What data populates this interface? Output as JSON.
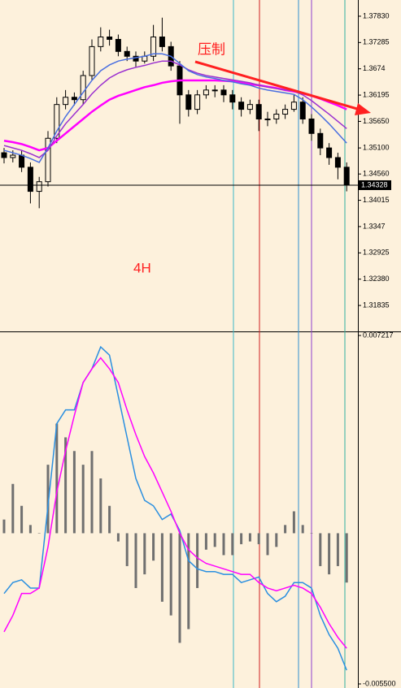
{
  "chart_data": [
    {
      "type": "candlestick",
      "annotations": [
        "压制",
        "4H"
      ],
      "open": [
        1.35,
        1.349,
        1.3495,
        1.347,
        1.342,
        1.344,
        1.353,
        1.36,
        1.3615,
        1.361,
        1.366,
        1.372,
        1.374,
        1.3735,
        1.371,
        1.37,
        1.369,
        1.37,
        1.374,
        1.372,
        1.368,
        1.362,
        1.359,
        1.362,
        1.363,
        1.363,
        1.362,
        1.3605,
        1.359,
        1.36,
        1.357,
        1.357,
        1.358,
        1.359,
        1.3605,
        1.357,
        1.354,
        1.351,
        1.349,
        1.347
      ],
      "high": [
        1.351,
        1.3505,
        1.3505,
        1.348,
        1.345,
        1.3545,
        1.3615,
        1.363,
        1.3625,
        1.367,
        1.3735,
        1.376,
        1.3755,
        1.3745,
        1.372,
        1.371,
        1.371,
        1.3765,
        1.378,
        1.373,
        1.369,
        1.363,
        1.363,
        1.364,
        1.364,
        1.364,
        1.363,
        1.3615,
        1.361,
        1.361,
        1.3585,
        1.359,
        1.36,
        1.362,
        1.3615,
        1.358,
        1.355,
        1.352,
        1.35,
        1.348
      ],
      "low": [
        1.3478,
        1.348,
        1.346,
        1.3395,
        1.3385,
        1.343,
        1.352,
        1.359,
        1.3598,
        1.36,
        1.365,
        1.371,
        1.3722,
        1.37,
        1.369,
        1.3678,
        1.3685,
        1.369,
        1.371,
        1.367,
        1.356,
        1.3575,
        1.358,
        1.3612,
        1.3615,
        1.3605,
        1.359,
        1.3575,
        1.358,
        1.3545,
        1.3555,
        1.356,
        1.357,
        1.3585,
        1.356,
        1.3525,
        1.3495,
        1.3475,
        1.3445,
        1.342
      ],
      "close": [
        1.349,
        1.3495,
        1.347,
        1.342,
        1.344,
        1.353,
        1.36,
        1.3615,
        1.361,
        1.366,
        1.372,
        1.374,
        1.3735,
        1.371,
        1.37,
        1.369,
        1.37,
        1.374,
        1.372,
        1.368,
        1.362,
        1.359,
        1.362,
        1.363,
        1.363,
        1.362,
        1.3605,
        1.359,
        1.36,
        1.357,
        1.357,
        1.358,
        1.359,
        1.3605,
        1.357,
        1.354,
        1.351,
        1.349,
        1.347,
        1.3433
      ],
      "series": [
        {
          "color": "#ff00ff",
          "values": [
            1.3525,
            1.3522,
            1.3518,
            1.3512,
            1.3505,
            1.351,
            1.3525,
            1.354,
            1.3555,
            1.357,
            1.3585,
            1.3598,
            1.361,
            1.3618,
            1.3624,
            1.363,
            1.3636,
            1.364,
            1.3645,
            1.3648,
            1.365,
            1.365,
            1.365,
            1.365,
            1.365,
            1.3649,
            1.3648,
            1.3645,
            1.3642,
            1.364,
            1.3637,
            1.3634,
            1.363,
            1.3627,
            1.3623,
            1.3618,
            1.3612,
            1.3605,
            1.3598,
            1.359
          ]
        },
        {
          "color": "#9b30d0",
          "values": [
            1.3515,
            1.351,
            1.3505,
            1.3498,
            1.349,
            1.3505,
            1.3535,
            1.356,
            1.358,
            1.36,
            1.3622,
            1.364,
            1.3655,
            1.3665,
            1.3672,
            1.3677,
            1.3681,
            1.3686,
            1.369,
            1.369,
            1.3682,
            1.3672,
            1.3665,
            1.366,
            1.3657,
            1.3654,
            1.3651,
            1.3648,
            1.3645,
            1.364,
            1.3636,
            1.3633,
            1.363,
            1.3628,
            1.362,
            1.3608,
            1.3594,
            1.358,
            1.3565,
            1.355
          ]
        },
        {
          "color": "#4a6fe0",
          "values": [
            1.3505,
            1.35,
            1.3495,
            1.3488,
            1.348,
            1.351,
            1.3545,
            1.3575,
            1.36,
            1.3625,
            1.365,
            1.367,
            1.3682,
            1.369,
            1.3694,
            1.3697,
            1.37,
            1.3705,
            1.3705,
            1.37,
            1.3685,
            1.367,
            1.3662,
            1.3657,
            1.3654,
            1.365,
            1.3647,
            1.3643,
            1.364,
            1.3634,
            1.363,
            1.3627,
            1.3624,
            1.3621,
            1.361,
            1.3595,
            1.3578,
            1.356,
            1.354,
            1.352
          ]
        }
      ],
      "last_price": 1.34328,
      "ylim": [
        1.31314,
        1.38166
      ],
      "yticks": [
        {
          "value": 1.3783,
          "label": "1.37830"
        },
        1.37285,
        1.3674,
        1.36195,
        {
          "value": 1.3565,
          "label": "1.35650"
        },
        {
          "value": 1.351,
          "label": "1.35100"
        },
        {
          "value": 1.3456,
          "label": "1.34560"
        },
        1.34015,
        1.3347,
        1.32925,
        {
          "value": 1.3238,
          "label": "1.32380"
        },
        1.31835
      ]
    },
    {
      "type": "macd",
      "values": [
        0.0005,
        0.0018,
        0.001,
        0.0003,
        0.0,
        0.0025,
        0.004,
        0.0035,
        0.003,
        0.0025,
        0.003,
        0.002,
        0.001,
        -0.0003,
        -0.0012,
        -0.002,
        -0.0015,
        -0.001,
        -0.0025,
        -0.003,
        -0.004,
        -0.0035,
        -0.002,
        -0.0006,
        -0.0005,
        -0.0008,
        -0.0008,
        -0.0004,
        -0.0003,
        -0.0004,
        -0.0008,
        -0.0005,
        0.0003,
        0.0008,
        0.0003,
        0.0,
        -0.0012,
        -0.0015,
        -0.0012,
        -0.0018
      ],
      "color": "#707070",
      "series": [
        {
          "color": "#2a8fe0",
          "values": [
            -0.0022,
            -0.0018,
            -0.0017,
            -0.002,
            -0.002,
            0.001,
            0.004,
            0.0045,
            0.0045,
            0.0055,
            0.006,
            0.0068,
            0.0065,
            0.005,
            0.0035,
            0.002,
            0.0012,
            0.001,
            0.0005,
            0.0007,
            0.0001,
            -0.001,
            -0.0013,
            -0.0014,
            -0.0014,
            -0.0015,
            -0.0015,
            -0.0018,
            -0.0017,
            -0.0016,
            -0.0022,
            -0.0025,
            -0.0023,
            -0.0018,
            -0.0018,
            -0.002,
            -0.003,
            -0.0037,
            -0.0042,
            -0.005
          ]
        },
        {
          "color": "#ff00ff",
          "values": [
            -0.0036,
            -0.003,
            -0.0022,
            -0.0022,
            -0.002,
            -0.0005,
            0.0015,
            0.003,
            0.0043,
            0.0055,
            0.006,
            0.0064,
            0.006,
            0.0055,
            0.0045,
            0.0036,
            0.0028,
            0.0022,
            0.0015,
            0.0008,
            0.0,
            -0.0006,
            -0.0009,
            -0.0011,
            -0.0012,
            -0.0013,
            -0.0014,
            -0.0015,
            -0.0015,
            -0.0018,
            -0.002,
            -0.0021,
            -0.002,
            -0.0019,
            -0.002,
            -0.0022,
            -0.0027,
            -0.0033,
            -0.0038,
            -0.0042
          ]
        }
      ],
      "ylim": [
        -0.005648,
        0.007336
      ],
      "yticks": [
        0.007217,
        {
          "value": -0.0055,
          "label": "-0.005500"
        }
      ]
    }
  ]
}
